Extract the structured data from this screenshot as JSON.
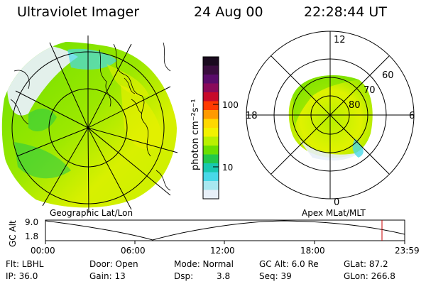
{
  "header": {
    "instrument": "Ultraviolet Imager",
    "date": "24 Aug 00",
    "time": "22:28:44 UT"
  },
  "colorbar": {
    "unit_label": "photon cm⁻²s⁻¹",
    "ticks": [
      "100",
      "10"
    ],
    "colors": [
      "#1a0a1e",
      "#3a0d3e",
      "#5a0c6a",
      "#8a0a5a",
      "#c80a2a",
      "#ff3a00",
      "#ff9a00",
      "#ffd800",
      "#f2f200",
      "#b8f000",
      "#6adf00",
      "#22c84a",
      "#18c8b0",
      "#48d8e8",
      "#a8e8f0",
      "#e8f0f8"
    ]
  },
  "polar_plot": {
    "mlt_labels": {
      "top": "12",
      "bottom": "0",
      "left": "18",
      "right": "6"
    },
    "lat_labels": [
      "60",
      "70",
      "80"
    ]
  },
  "panel_labels": {
    "left": "Geographic Lat/Lon",
    "right": "Apex MLat/MLT"
  },
  "altitude_plot": {
    "axis_label": "GC Alt",
    "y_ticks": [
      "9.0",
      "1.8"
    ],
    "x_ticks": [
      "00:00",
      "06:00",
      "12:00",
      "18:00",
      "23:59"
    ]
  },
  "info": {
    "row1": {
      "flt": "Flt: LBHL",
      "door": "Door: Open",
      "mode": "Mode: Normal",
      "gc_alt": "GC Alt: 6.0 Re",
      "glat": "GLat: 87.2"
    },
    "row2": {
      "ip": "IP: 36.0",
      "gain": "Gain: 13",
      "dsp_label": "Dsp:",
      "dsp_value": "3.8",
      "seq": "Seq: 39",
      "glon": "GLon: 266.8"
    }
  }
}
